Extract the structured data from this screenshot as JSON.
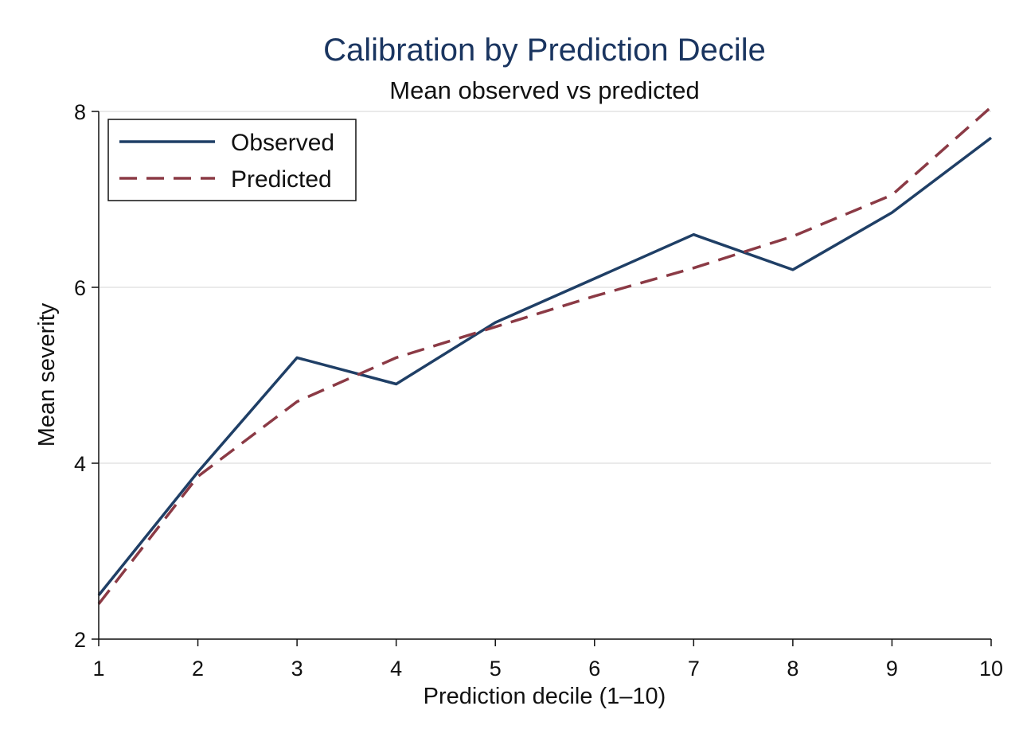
{
  "chart_data": {
    "type": "line",
    "title": "Calibration by Prediction Decile",
    "subtitle": "Mean observed vs predicted",
    "xlabel": "Prediction decile (1–10)",
    "ylabel": "Mean severity",
    "x": [
      1,
      2,
      3,
      4,
      5,
      6,
      7,
      8,
      9,
      10
    ],
    "xlim": [
      1,
      10
    ],
    "ylim": [
      2,
      8
    ],
    "xticks": [
      "1",
      "2",
      "3",
      "4",
      "5",
      "6",
      "7",
      "8",
      "9",
      "10"
    ],
    "yticks": [
      "2",
      "4",
      "6",
      "8"
    ],
    "grid": true,
    "legend_position": "top-left",
    "series": [
      {
        "name": "Observed",
        "color": "#1f3f66",
        "style": "solid",
        "values": [
          2.5,
          3.9,
          5.2,
          4.9,
          5.6,
          6.1,
          6.6,
          6.2,
          6.85,
          7.7
        ]
      },
      {
        "name": "Predicted",
        "color": "#8b3a45",
        "style": "dashed",
        "values": [
          2.4,
          3.85,
          4.7,
          5.2,
          5.55,
          5.9,
          6.22,
          6.58,
          7.05,
          8.05
        ]
      }
    ]
  }
}
